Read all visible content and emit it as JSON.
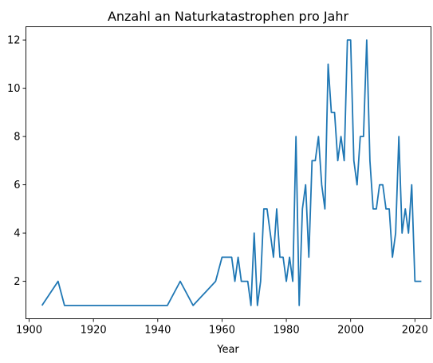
{
  "chart_data": {
    "type": "line",
    "title": "Anzahl an Naturkatastrophen pro Jahr",
    "xlabel": "Year",
    "ylabel": "",
    "xlim": [
      1899,
      2025
    ],
    "ylim": [
      0.45,
      12.55
    ],
    "xticks": [
      1900,
      1920,
      1940,
      1960,
      1980,
      2000,
      2020
    ],
    "yticks": [
      2,
      4,
      6,
      8,
      10,
      12
    ],
    "grid": false,
    "legend": "none",
    "series": [
      {
        "color": "#1f77b4",
        "x": [
          1904,
          1909,
          1911,
          1943,
          1947,
          1951,
          1958,
          1960,
          1963,
          1964,
          1965,
          1966,
          1968,
          1969,
          1970,
          1971,
          1972,
          1973,
          1974,
          1976,
          1977,
          1978,
          1979,
          1980,
          1981,
          1982,
          1983,
          1984,
          1985,
          1986,
          1987,
          1988,
          1989,
          1990,
          1991,
          1992,
          1993,
          1994,
          1995,
          1996,
          1997,
          1998,
          1999,
          2000,
          2001,
          2002,
          2003,
          2004,
          2005,
          2006,
          2007,
          2008,
          2009,
          2010,
          2011,
          2012,
          2013,
          2014,
          2015,
          2016,
          2017,
          2018,
          2019,
          2020,
          2021,
          2022
        ],
        "y": [
          1,
          2,
          1,
          1,
          2,
          1,
          2,
          3,
          3,
          2,
          3,
          2,
          2,
          1,
          4,
          1,
          2,
          5,
          5,
          3,
          5,
          3,
          3,
          2,
          3,
          2,
          8,
          1,
          5,
          6,
          3,
          7,
          7,
          8,
          6,
          5,
          11,
          9,
          9,
          7,
          8,
          7,
          12,
          12,
          7,
          6,
          8,
          8,
          12,
          7,
          5,
          5,
          6,
          6,
          5,
          5,
          3,
          4,
          8,
          4,
          5,
          4,
          6,
          2,
          2,
          2
        ]
      }
    ]
  }
}
